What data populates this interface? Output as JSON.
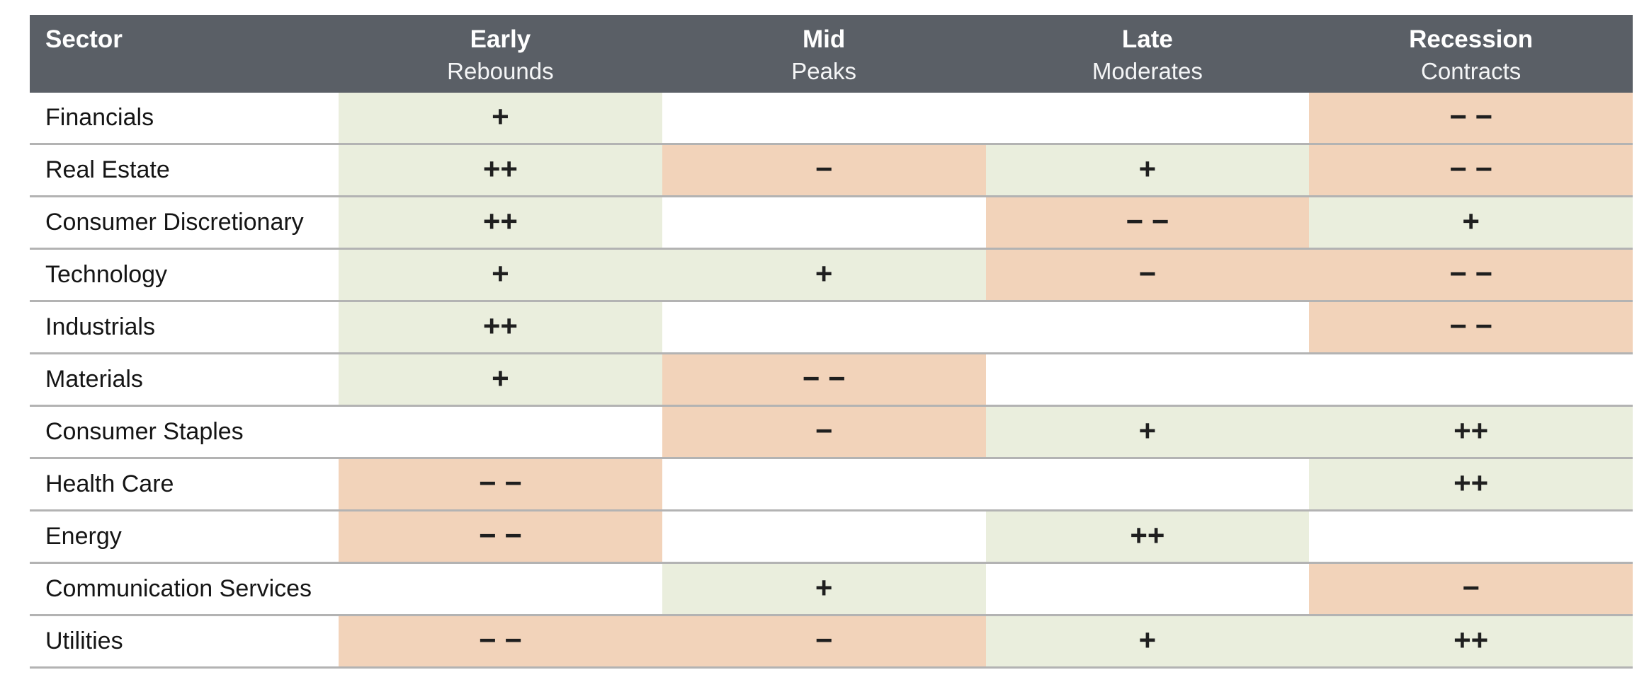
{
  "chart_data": {
    "type": "table",
    "title": "",
    "columns": [
      "Sector",
      "Early Rebounds",
      "Mid Peaks",
      "Late Moderates",
      "Recession Contracts"
    ],
    "header": {
      "sector_label": "Sector",
      "phases": [
        {
          "title": "Early",
          "subtitle": "Rebounds"
        },
        {
          "title": "Mid",
          "subtitle": "Peaks"
        },
        {
          "title": "Late",
          "subtitle": "Moderates"
        },
        {
          "title": "Recession",
          "subtitle": "Contracts"
        }
      ]
    },
    "rows": [
      {
        "sector": "Financials",
        "cells": [
          {
            "value": "+",
            "tone": "positive"
          },
          {
            "value": "",
            "tone": "none"
          },
          {
            "value": "",
            "tone": "none"
          },
          {
            "value": "− −",
            "tone": "negative"
          }
        ]
      },
      {
        "sector": "Real Estate",
        "cells": [
          {
            "value": "++",
            "tone": "positive"
          },
          {
            "value": "−",
            "tone": "negative"
          },
          {
            "value": "+",
            "tone": "positive"
          },
          {
            "value": "− −",
            "tone": "negative"
          }
        ]
      },
      {
        "sector": "Consumer Discretionary",
        "cells": [
          {
            "value": "++",
            "tone": "positive"
          },
          {
            "value": "",
            "tone": "none"
          },
          {
            "value": "− −",
            "tone": "negative"
          },
          {
            "value": "+",
            "tone": "positive"
          }
        ]
      },
      {
        "sector": "Technology",
        "cells": [
          {
            "value": "+",
            "tone": "positive"
          },
          {
            "value": "+",
            "tone": "positive"
          },
          {
            "value": "−",
            "tone": "negative"
          },
          {
            "value": "− −",
            "tone": "negative"
          }
        ]
      },
      {
        "sector": "Industrials",
        "cells": [
          {
            "value": "++",
            "tone": "positive"
          },
          {
            "value": "",
            "tone": "none"
          },
          {
            "value": "",
            "tone": "none"
          },
          {
            "value": "− −",
            "tone": "negative"
          }
        ]
      },
      {
        "sector": "Materials",
        "cells": [
          {
            "value": "+",
            "tone": "positive"
          },
          {
            "value": "− −",
            "tone": "negative"
          },
          {
            "value": "",
            "tone": "none"
          },
          {
            "value": "",
            "tone": "none"
          }
        ]
      },
      {
        "sector": "Consumer Staples",
        "cells": [
          {
            "value": "",
            "tone": "none"
          },
          {
            "value": "−",
            "tone": "negative"
          },
          {
            "value": "+",
            "tone": "positive"
          },
          {
            "value": "++",
            "tone": "positive"
          }
        ]
      },
      {
        "sector": "Health Care",
        "cells": [
          {
            "value": "− −",
            "tone": "negative"
          },
          {
            "value": "",
            "tone": "none"
          },
          {
            "value": "",
            "tone": "none"
          },
          {
            "value": "++",
            "tone": "positive"
          }
        ]
      },
      {
        "sector": "Energy",
        "cells": [
          {
            "value": "− −",
            "tone": "negative"
          },
          {
            "value": "",
            "tone": "none"
          },
          {
            "value": "++",
            "tone": "positive"
          },
          {
            "value": "",
            "tone": "none"
          }
        ]
      },
      {
        "sector": "Communication Services",
        "cells": [
          {
            "value": "",
            "tone": "none"
          },
          {
            "value": "+",
            "tone": "positive"
          },
          {
            "value": "",
            "tone": "none"
          },
          {
            "value": "−",
            "tone": "negative"
          }
        ]
      },
      {
        "sector": "Utilities",
        "cells": [
          {
            "value": "− −",
            "tone": "negative"
          },
          {
            "value": "−",
            "tone": "negative"
          },
          {
            "value": "+",
            "tone": "positive"
          },
          {
            "value": "++",
            "tone": "positive"
          }
        ]
      }
    ],
    "colors": {
      "header_bg": "#5a5f66",
      "header_text": "#ffffff",
      "positive_bg": "#eaeedd",
      "negative_bg": "#f2d3ba",
      "row_line": "#b3b3b3",
      "symbol": "#1f1f1f"
    }
  }
}
